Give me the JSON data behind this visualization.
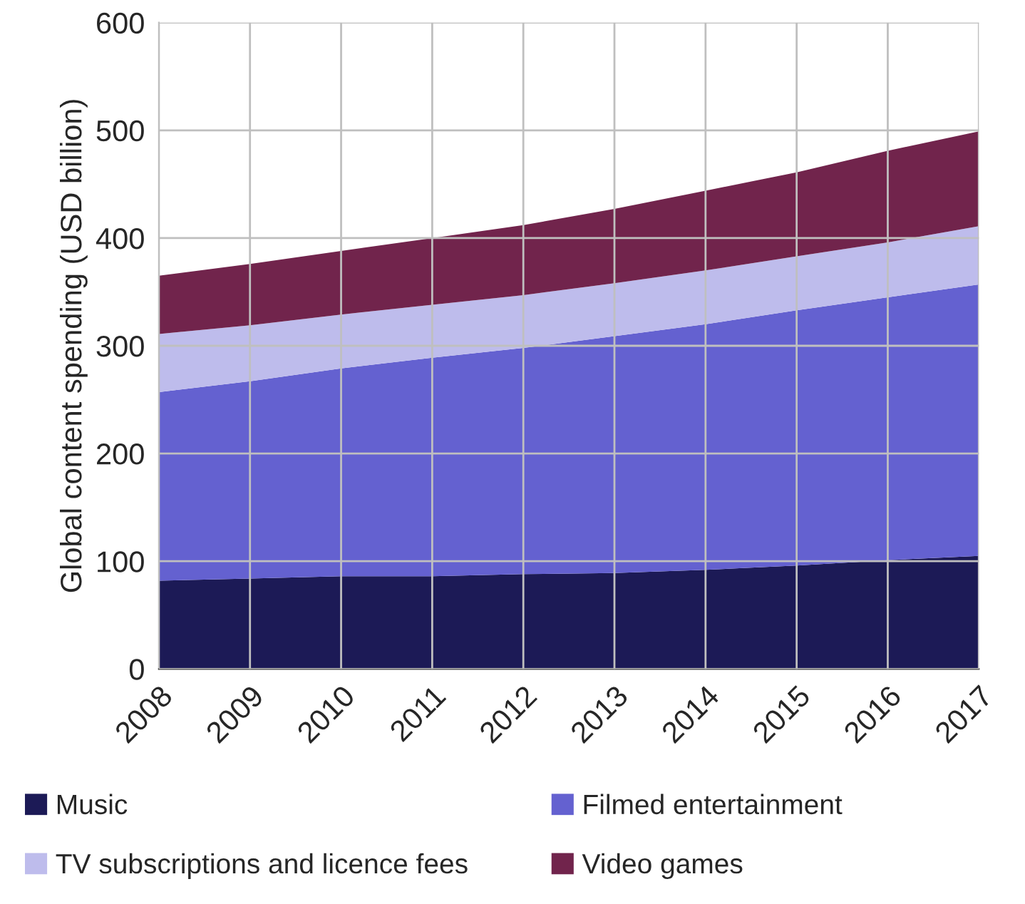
{
  "chart_data": {
    "type": "area",
    "stacked": true,
    "ylabel": "Global content spending (USD billion)",
    "categories": [
      "2008",
      "2009",
      "2010",
      "2011",
      "2012",
      "2013",
      "2014",
      "2015",
      "2016",
      "2017"
    ],
    "series": [
      {
        "name": "Music",
        "color": "#1c1a56",
        "values": [
          82,
          84,
          86,
          86,
          88,
          89,
          92,
          96,
          101,
          105
        ]
      },
      {
        "name": "Filmed entertainment",
        "color": "#6461d0",
        "values": [
          175,
          183,
          193,
          203,
          210,
          220,
          228,
          237,
          244,
          252
        ]
      },
      {
        "name": "TV subscriptions and licence fees",
        "color": "#bebcec",
        "values": [
          54,
          52,
          50,
          49,
          49,
          49,
          50,
          50,
          51,
          54
        ]
      },
      {
        "name": "Video games",
        "color": "#71244c",
        "values": [
          54,
          57,
          59,
          62,
          65,
          69,
          74,
          78,
          85,
          88
        ]
      }
    ],
    "ylim": [
      0,
      600
    ],
    "yticks": [
      0,
      100,
      200,
      300,
      400,
      500,
      600
    ],
    "grid": true,
    "legend": "bottom"
  }
}
